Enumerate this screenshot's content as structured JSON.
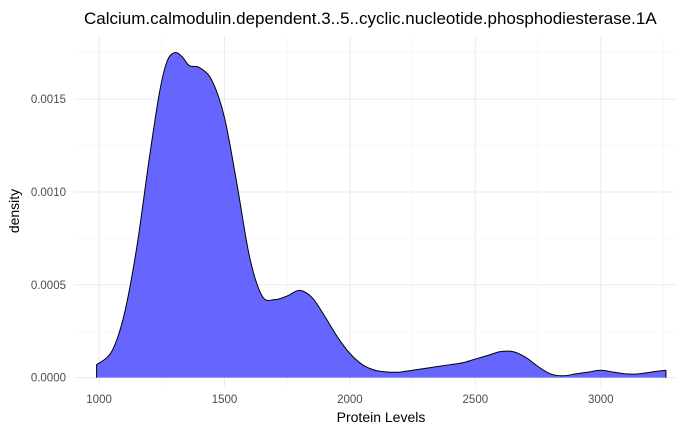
{
  "chart_data": {
    "type": "area",
    "title": "Calcium.calmodulin.dependent.3..5..cyclic.nucleotide.phosphodiesterase.1A",
    "xlabel": "Protein Levels",
    "ylabel": "density",
    "xlim": [
      900,
      3300
    ],
    "ylim": [
      -4.5e-05,
      0.00184
    ],
    "x_ticks": [
      1000,
      1500,
      2000,
      2500,
      3000
    ],
    "y_ticks": [
      0.0,
      0.0005,
      0.001,
      0.0015
    ],
    "x_tick_labels": [
      "1000",
      "1500",
      "2000",
      "2500",
      "3000"
    ],
    "y_tick_labels": [
      "0.0000",
      "0.0005",
      "0.0010",
      "0.0015"
    ],
    "grid": true,
    "fill_color": "#6666ff",
    "line_color": "#000000",
    "x": [
      990,
      1050,
      1100,
      1150,
      1200,
      1240,
      1270,
      1300,
      1330,
      1360,
      1400,
      1450,
      1500,
      1550,
      1600,
      1650,
      1700,
      1750,
      1800,
      1850,
      1900,
      1950,
      2000,
      2050,
      2100,
      2150,
      2200,
      2250,
      2300,
      2350,
      2400,
      2450,
      2500,
      2550,
      2600,
      2650,
      2700,
      2750,
      2800,
      2850,
      2900,
      2950,
      3000,
      3050,
      3100,
      3150,
      3200,
      3260
    ],
    "y": [
      7e-05,
      0.00014,
      0.00034,
      0.0007,
      0.00118,
      0.00153,
      0.0017,
      0.00175,
      0.00173,
      0.00168,
      0.00167,
      0.0016,
      0.0014,
      0.00104,
      0.00065,
      0.00044,
      0.00042,
      0.00044,
      0.00047,
      0.00043,
      0.00033,
      0.00022,
      0.00013,
      7e-05,
      4e-05,
      3e-05,
      3e-05,
      4e-05,
      5e-05,
      6e-05,
      7e-05,
      8e-05,
      0.0001,
      0.00012,
      0.00014,
      0.00014,
      0.00011,
      6e-05,
      2e-05,
      1e-05,
      2e-05,
      3e-05,
      4e-05,
      3e-05,
      2e-05,
      2e-05,
      3e-05,
      4e-05
    ]
  }
}
